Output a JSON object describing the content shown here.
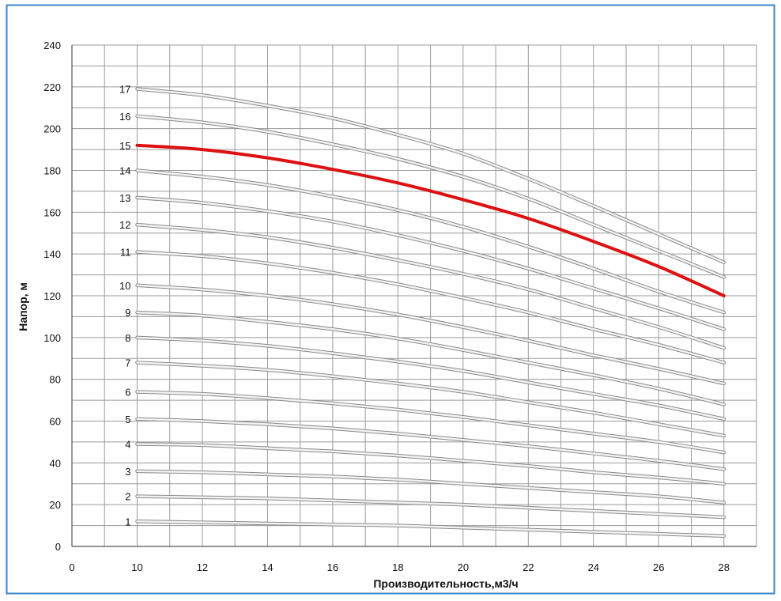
{
  "colors": {
    "frame": "#3a86c8",
    "grid": "#9a9a9a",
    "curve": "#b9b9b9",
    "highlight": "#dd1111",
    "text": "#111111"
  },
  "chart_data": {
    "type": "line",
    "xlabel": "Производительность,м3/ч",
    "ylabel": "Напор, м",
    "xlim": [
      8,
      29
    ],
    "ylim": [
      0,
      240
    ],
    "x_ticks": [
      10,
      12,
      14,
      16,
      18,
      20,
      22,
      24,
      26,
      28
    ],
    "y_ticks": [
      0,
      20,
      40,
      60,
      80,
      100,
      120,
      140,
      160,
      180,
      200,
      220,
      240
    ],
    "origin_label": "0",
    "grid": true,
    "x": [
      10,
      12,
      14,
      16,
      18,
      20,
      22,
      24,
      26,
      28
    ],
    "highlighted_series": "15",
    "series": [
      {
        "name": "1",
        "values": [
          12,
          11.5,
          11,
          10.5,
          10,
          9,
          8,
          7,
          6,
          5
        ]
      },
      {
        "name": "2",
        "values": [
          24,
          23.5,
          23,
          22,
          21,
          20,
          18.5,
          17,
          15.5,
          14
        ]
      },
      {
        "name": "3",
        "values": [
          36,
          35.5,
          34.5,
          33.5,
          32,
          30,
          28,
          26,
          24,
          21
        ]
      },
      {
        "name": "4",
        "values": [
          49,
          48.5,
          47,
          45.5,
          43.5,
          41,
          38.5,
          35.5,
          33,
          30
        ]
      },
      {
        "name": "5",
        "values": [
          61,
          60,
          58.5,
          56.5,
          54,
          51,
          48,
          44.5,
          41,
          37
        ]
      },
      {
        "name": "6",
        "values": [
          74,
          73,
          71,
          68.5,
          65.5,
          62,
          58,
          54,
          50,
          45
        ]
      },
      {
        "name": "7",
        "values": [
          88,
          86.5,
          84.5,
          81.5,
          78,
          74,
          69,
          64,
          58.5,
          53
        ]
      },
      {
        "name": "8",
        "values": [
          100,
          98.5,
          96,
          92.5,
          88.5,
          84,
          78.5,
          73,
          67.5,
          61
        ]
      },
      {
        "name": "9",
        "values": [
          112,
          110.5,
          107.5,
          104,
          99.5,
          94,
          88,
          82,
          75.5,
          68
        ]
      },
      {
        "name": "10",
        "values": [
          125,
          123,
          120,
          116,
          111,
          105,
          98.5,
          91.5,
          85,
          78
        ]
      },
      {
        "name": "11",
        "values": [
          141,
          139,
          135.5,
          131,
          125.5,
          119,
          112,
          104,
          96.5,
          88
        ]
      },
      {
        "name": "12",
        "values": [
          154,
          151.5,
          148,
          143,
          137,
          130.5,
          123,
          114,
          105,
          95
        ]
      },
      {
        "name": "13",
        "values": [
          167,
          164.5,
          160.5,
          155.5,
          149,
          141.5,
          133,
          123.5,
          114,
          104
        ]
      },
      {
        "name": "14",
        "values": [
          180,
          177,
          173,
          167.5,
          161,
          153,
          143.5,
          133,
          122,
          112
        ]
      },
      {
        "name": "15",
        "values": [
          192,
          190,
          186,
          180.5,
          174,
          166,
          157,
          146,
          134,
          120
        ]
      },
      {
        "name": "16",
        "values": [
          206,
          203,
          198.5,
          192.5,
          185.5,
          177,
          166.5,
          154,
          141.5,
          129
        ]
      },
      {
        "name": "17",
        "values": [
          219,
          216,
          211,
          205,
          197,
          188,
          176,
          163,
          149.5,
          136
        ]
      }
    ]
  }
}
